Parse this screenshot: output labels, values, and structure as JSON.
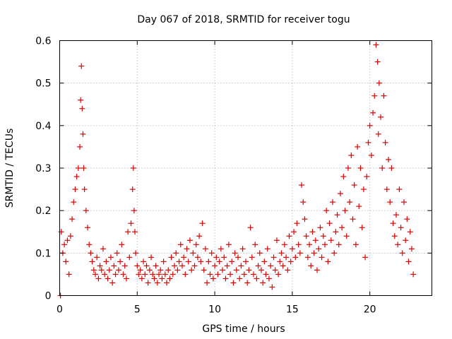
{
  "chart_data": {
    "type": "scatter",
    "title": "Day 067 of 2018, SRMTID for receiver togu",
    "xlabel": "GPS time / hours",
    "ylabel": "SRMTID / TECUs",
    "xlim": [
      0,
      24
    ],
    "ylim": [
      0,
      0.6
    ],
    "x_ticks": [
      0,
      5,
      10,
      15,
      20
    ],
    "x_tick_labels": [
      "0",
      "5",
      "10",
      "15",
      "20"
    ],
    "y_ticks": [
      0,
      0.1,
      0.2,
      0.3,
      0.4,
      0.5,
      0.6
    ],
    "y_tick_labels": [
      "0",
      "0.1",
      "0.2",
      "0.3",
      "0.4",
      "0.5",
      "0.6"
    ],
    "grid": true,
    "marker": "+",
    "series": [
      {
        "name": "SRMTID",
        "color": "#e00000",
        "x": [
          0.05,
          0.1,
          0.2,
          0.3,
          0.4,
          0.5,
          0.6,
          0.7,
          0.8,
          0.9,
          1.0,
          1.1,
          1.2,
          1.3,
          1.35,
          1.4,
          1.45,
          1.5,
          1.55,
          1.6,
          1.7,
          1.8,
          1.9,
          2.0,
          2.1,
          2.2,
          2.3,
          2.4,
          2.5,
          2.6,
          2.7,
          2.8,
          2.9,
          3.0,
          3.1,
          3.2,
          3.3,
          3.4,
          3.5,
          3.6,
          3.7,
          3.8,
          3.9,
          4.0,
          4.1,
          4.2,
          4.3,
          4.4,
          4.5,
          4.6,
          4.7,
          4.75,
          4.8,
          4.85,
          4.9,
          5.0,
          5.1,
          5.2,
          5.3,
          5.4,
          5.5,
          5.6,
          5.7,
          5.8,
          5.9,
          6.0,
          6.1,
          6.2,
          6.3,
          6.4,
          6.5,
          6.6,
          6.7,
          6.8,
          6.9,
          7.0,
          7.1,
          7.2,
          7.3,
          7.4,
          7.5,
          7.6,
          7.7,
          7.8,
          7.9,
          8.0,
          8.1,
          8.2,
          8.3,
          8.4,
          8.5,
          8.6,
          8.7,
          8.8,
          8.9,
          9.0,
          9.1,
          9.2,
          9.3,
          9.4,
          9.5,
          9.6,
          9.7,
          9.8,
          9.9,
          10.0,
          10.1,
          10.2,
          10.3,
          10.4,
          10.5,
          10.6,
          10.7,
          10.8,
          10.9,
          11.0,
          11.1,
          11.2,
          11.3,
          11.4,
          11.5,
          11.6,
          11.7,
          11.8,
          11.9,
          12.0,
          12.1,
          12.2,
          12.3,
          12.4,
          12.5,
          12.6,
          12.7,
          12.8,
          12.9,
          13.0,
          13.1,
          13.2,
          13.3,
          13.4,
          13.5,
          13.6,
          13.7,
          13.8,
          13.9,
          14.0,
          14.1,
          14.2,
          14.3,
          14.4,
          14.5,
          14.6,
          14.7,
          14.8,
          14.9,
          15.0,
          15.1,
          15.2,
          15.3,
          15.4,
          15.5,
          15.6,
          15.7,
          15.8,
          15.9,
          16.0,
          16.1,
          16.2,
          16.3,
          16.4,
          16.5,
          16.6,
          16.7,
          16.8,
          16.9,
          17.0,
          17.1,
          17.2,
          17.3,
          17.4,
          17.5,
          17.6,
          17.7,
          17.8,
          17.9,
          18.0,
          18.1,
          18.2,
          18.3,
          18.4,
          18.5,
          18.6,
          18.7,
          18.8,
          18.9,
          19.0,
          19.1,
          19.2,
          19.3,
          19.4,
          19.5,
          19.6,
          19.7,
          19.8,
          19.9,
          20.0,
          20.1,
          20.2,
          20.3,
          20.4,
          20.5,
          20.55,
          20.6,
          20.7,
          20.8,
          20.9,
          21.0,
          21.1,
          21.2,
          21.3,
          21.4,
          21.5,
          21.6,
          21.7,
          21.8,
          21.9,
          22.0,
          22.1,
          22.2,
          22.3,
          22.4,
          22.5,
          22.6,
          22.7,
          22.8
        ],
        "y": [
          0.0,
          0.15,
          0.1,
          0.12,
          0.08,
          0.13,
          0.05,
          0.14,
          0.18,
          0.22,
          0.25,
          0.28,
          0.3,
          0.35,
          0.46,
          0.54,
          0.44,
          0.38,
          0.3,
          0.25,
          0.2,
          0.16,
          0.12,
          0.1,
          0.08,
          0.06,
          0.05,
          0.09,
          0.04,
          0.07,
          0.06,
          0.11,
          0.05,
          0.08,
          0.04,
          0.06,
          0.09,
          0.03,
          0.07,
          0.05,
          0.1,
          0.06,
          0.08,
          0.12,
          0.05,
          0.07,
          0.04,
          0.15,
          0.09,
          0.17,
          0.25,
          0.3,
          0.2,
          0.15,
          0.1,
          0.07,
          0.05,
          0.06,
          0.04,
          0.08,
          0.05,
          0.07,
          0.03,
          0.06,
          0.09,
          0.05,
          0.04,
          0.07,
          0.03,
          0.05,
          0.06,
          0.04,
          0.08,
          0.05,
          0.03,
          0.06,
          0.04,
          0.09,
          0.05,
          0.07,
          0.1,
          0.06,
          0.08,
          0.12,
          0.07,
          0.09,
          0.05,
          0.11,
          0.08,
          0.13,
          0.06,
          0.1,
          0.07,
          0.12,
          0.09,
          0.14,
          0.08,
          0.17,
          0.06,
          0.11,
          0.03,
          0.08,
          0.05,
          0.1,
          0.04,
          0.07,
          0.09,
          0.05,
          0.08,
          0.11,
          0.06,
          0.09,
          0.04,
          0.07,
          0.12,
          0.05,
          0.08,
          0.03,
          0.1,
          0.06,
          0.09,
          0.04,
          0.07,
          0.11,
          0.05,
          0.08,
          0.03,
          0.06,
          0.16,
          0.09,
          0.05,
          0.12,
          0.04,
          0.07,
          0.1,
          0.06,
          0.03,
          0.08,
          0.05,
          0.11,
          0.04,
          0.07,
          0.02,
          0.09,
          0.06,
          0.13,
          0.05,
          0.08,
          0.1,
          0.07,
          0.12,
          0.09,
          0.06,
          0.14,
          0.08,
          0.11,
          0.15,
          0.09,
          0.17,
          0.12,
          0.1,
          0.26,
          0.22,
          0.18,
          0.14,
          0.09,
          0.12,
          0.07,
          0.15,
          0.1,
          0.13,
          0.06,
          0.11,
          0.16,
          0.09,
          0.14,
          0.12,
          0.2,
          0.08,
          0.17,
          0.13,
          0.22,
          0.1,
          0.15,
          0.19,
          0.12,
          0.24,
          0.16,
          0.28,
          0.2,
          0.14,
          0.3,
          0.22,
          0.33,
          0.18,
          0.26,
          0.12,
          0.35,
          0.21,
          0.3,
          0.16,
          0.25,
          0.09,
          0.28,
          0.36,
          0.4,
          0.33,
          0.43,
          0.47,
          0.59,
          0.55,
          0.38,
          0.5,
          0.42,
          0.3,
          0.47,
          0.36,
          0.25,
          0.32,
          0.22,
          0.3,
          0.17,
          0.14,
          0.19,
          0.12,
          0.25,
          0.16,
          0.1,
          0.22,
          0.13,
          0.18,
          0.08,
          0.15,
          0.11,
          0.05
        ]
      }
    ]
  }
}
